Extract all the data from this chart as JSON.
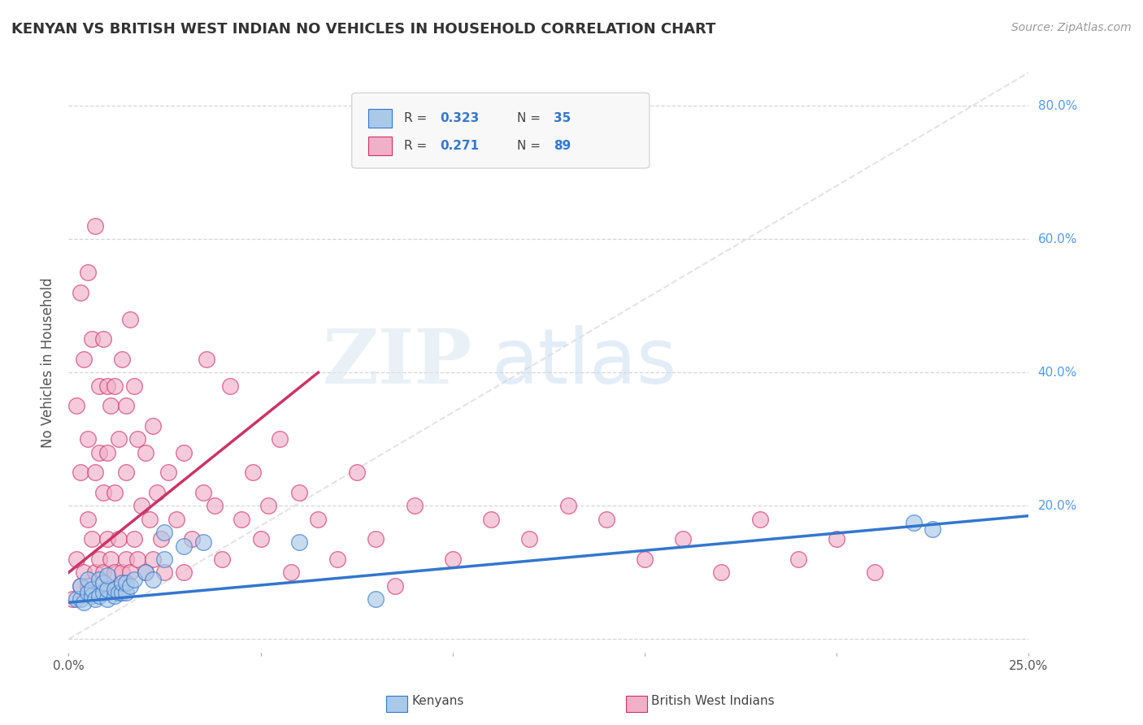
{
  "title": "KENYAN VS BRITISH WEST INDIAN NO VEHICLES IN HOUSEHOLD CORRELATION CHART",
  "source": "Source: ZipAtlas.com",
  "ylabel": "No Vehicles in Household",
  "xlim": [
    0.0,
    0.25
  ],
  "ylim": [
    -0.02,
    0.85
  ],
  "background_color": "#ffffff",
  "grid_color": "#cccccc",
  "watermark_zip": "ZIP",
  "watermark_atlas": "atlas",
  "kenyan_color": "#aac8e8",
  "bwi_color": "#f0b0c8",
  "kenyan_line_color": "#3377cc",
  "bwi_line_color": "#cc3366",
  "diagonal_color": "#dddddd",
  "legend_box_color": "#f0f0f0",
  "legend_border_color": "#cccccc",
  "yticklabel_color": "#5599ee",
  "kenyan_scatter_x": [
    0.002,
    0.003,
    0.003,
    0.004,
    0.005,
    0.005,
    0.006,
    0.006,
    0.007,
    0.008,
    0.008,
    0.009,
    0.009,
    0.01,
    0.01,
    0.01,
    0.012,
    0.012,
    0.013,
    0.014,
    0.014,
    0.015,
    0.015,
    0.016,
    0.017,
    0.02,
    0.022,
    0.025,
    0.025,
    0.03,
    0.035,
    0.06,
    0.08,
    0.22,
    0.225
  ],
  "kenyan_scatter_y": [
    0.06,
    0.06,
    0.08,
    0.055,
    0.07,
    0.09,
    0.065,
    0.075,
    0.06,
    0.065,
    0.09,
    0.07,
    0.085,
    0.06,
    0.075,
    0.095,
    0.065,
    0.075,
    0.07,
    0.07,
    0.085,
    0.07,
    0.085,
    0.08,
    0.09,
    0.1,
    0.09,
    0.12,
    0.16,
    0.14,
    0.145,
    0.145,
    0.06,
    0.175,
    0.165
  ],
  "bwi_scatter_x": [
    0.001,
    0.002,
    0.002,
    0.003,
    0.003,
    0.003,
    0.004,
    0.004,
    0.005,
    0.005,
    0.005,
    0.005,
    0.006,
    0.006,
    0.007,
    0.007,
    0.007,
    0.008,
    0.008,
    0.008,
    0.009,
    0.009,
    0.009,
    0.01,
    0.01,
    0.01,
    0.01,
    0.011,
    0.011,
    0.012,
    0.012,
    0.012,
    0.013,
    0.013,
    0.014,
    0.014,
    0.015,
    0.015,
    0.015,
    0.016,
    0.016,
    0.017,
    0.017,
    0.018,
    0.018,
    0.019,
    0.02,
    0.02,
    0.021,
    0.022,
    0.022,
    0.023,
    0.024,
    0.025,
    0.026,
    0.028,
    0.03,
    0.03,
    0.032,
    0.035,
    0.036,
    0.038,
    0.04,
    0.042,
    0.045,
    0.048,
    0.05,
    0.052,
    0.055,
    0.058,
    0.06,
    0.065,
    0.07,
    0.075,
    0.08,
    0.085,
    0.09,
    0.1,
    0.11,
    0.12,
    0.13,
    0.14,
    0.15,
    0.16,
    0.17,
    0.18,
    0.19,
    0.2,
    0.21
  ],
  "bwi_scatter_y": [
    0.06,
    0.12,
    0.35,
    0.08,
    0.25,
    0.52,
    0.1,
    0.42,
    0.08,
    0.18,
    0.3,
    0.55,
    0.15,
    0.45,
    0.1,
    0.25,
    0.62,
    0.12,
    0.28,
    0.38,
    0.1,
    0.22,
    0.45,
    0.08,
    0.15,
    0.28,
    0.38,
    0.12,
    0.35,
    0.1,
    0.22,
    0.38,
    0.15,
    0.3,
    0.1,
    0.42,
    0.12,
    0.25,
    0.35,
    0.1,
    0.48,
    0.15,
    0.38,
    0.12,
    0.3,
    0.2,
    0.1,
    0.28,
    0.18,
    0.12,
    0.32,
    0.22,
    0.15,
    0.1,
    0.25,
    0.18,
    0.1,
    0.28,
    0.15,
    0.22,
    0.42,
    0.2,
    0.12,
    0.38,
    0.18,
    0.25,
    0.15,
    0.2,
    0.3,
    0.1,
    0.22,
    0.18,
    0.12,
    0.25,
    0.15,
    0.08,
    0.2,
    0.12,
    0.18,
    0.15,
    0.2,
    0.18,
    0.12,
    0.15,
    0.1,
    0.18,
    0.12,
    0.15,
    0.1
  ]
}
